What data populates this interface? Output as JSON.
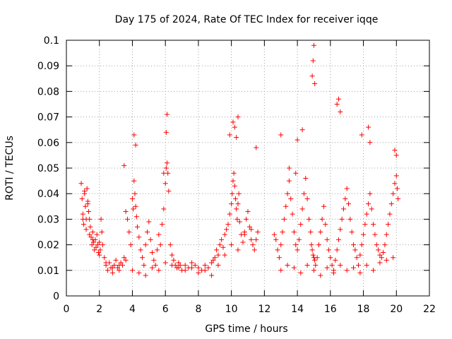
{
  "chart_data": {
    "type": "scatter",
    "title": "Day 175 of 2024, Rate Of TEC Index for receiver iqqe",
    "xlabel": "GPS time / hours",
    "ylabel": "ROTI / TECUs",
    "xlim": [
      0,
      22
    ],
    "ylim": [
      0,
      0.1
    ],
    "xticks": [
      0,
      2,
      4,
      6,
      8,
      10,
      12,
      14,
      16,
      18,
      20,
      22
    ],
    "yticks": [
      0,
      0.01,
      0.02,
      0.03,
      0.04,
      0.05,
      0.06,
      0.07,
      0.08,
      0.09,
      0.1
    ],
    "xtick_labels": [
      "0",
      "2",
      "4",
      "6",
      "8",
      "10",
      "12",
      "14",
      "16",
      "18",
      "20",
      "22"
    ],
    "ytick_labels": [
      "0",
      "0.01",
      "0.02",
      "0.03",
      "0.04",
      "0.05",
      "0.06",
      "0.07",
      "0.08",
      "0.09",
      "0.1"
    ],
    "grid": true,
    "marker": "+",
    "color": "#ff0000",
    "series": [
      {
        "name": "ROTI",
        "x": [
          0.9,
          0.95,
          1.0,
          1.05,
          1.1,
          1.15,
          1.2,
          1.25,
          1.3,
          1.35,
          1.4,
          1.45,
          1.5,
          1.55,
          1.6,
          1.65,
          1.7,
          1.75,
          1.8,
          1.85,
          1.9,
          1.95,
          2.0,
          2.05,
          2.1,
          2.15,
          2.2,
          2.3,
          2.4,
          2.5,
          2.6,
          2.7,
          2.8,
          2.9,
          3.0,
          3.1,
          3.2,
          3.3,
          3.4,
          3.5,
          3.6,
          3.7,
          3.8,
          3.9,
          4.0,
          4.05,
          4.1,
          4.15,
          4.2,
          4.25,
          4.3,
          4.4,
          4.5,
          4.6,
          4.7,
          4.8,
          4.9,
          5.0,
          5.1,
          5.2,
          5.3,
          5.4,
          5.5,
          5.6,
          5.7,
          5.8,
          5.9,
          6.0,
          6.05,
          6.1,
          6.15,
          6.2,
          6.3,
          6.4,
          6.5,
          6.6,
          6.7,
          6.8,
          6.9,
          7.0,
          7.2,
          7.4,
          7.6,
          7.8,
          8.0,
          8.2,
          8.4,
          8.6,
          8.8,
          8.9,
          9.0,
          9.1,
          9.2,
          9.3,
          9.4,
          9.5,
          9.6,
          9.7,
          9.8,
          9.9,
          10.0,
          10.05,
          10.1,
          10.15,
          10.2,
          10.25,
          10.3,
          10.35,
          10.4,
          10.45,
          10.5,
          10.6,
          10.7,
          10.8,
          10.9,
          11.0,
          11.1,
          11.2,
          11.3,
          11.4,
          11.5,
          11.6,
          12.6,
          12.7,
          12.8,
          12.9,
          13.0,
          13.1,
          13.2,
          13.3,
          13.4,
          13.5,
          13.6,
          13.7,
          13.8,
          13.9,
          14.0,
          14.1,
          14.2,
          14.3,
          14.4,
          14.5,
          14.6,
          14.7,
          14.8,
          14.85,
          14.9,
          14.95,
          15.0,
          15.05,
          15.1,
          15.2,
          15.3,
          15.4,
          15.5,
          15.6,
          15.7,
          15.8,
          15.9,
          16.0,
          16.1,
          16.2,
          16.3,
          16.4,
          16.5,
          16.6,
          16.7,
          16.8,
          16.9,
          17.0,
          17.1,
          17.2,
          17.3,
          17.4,
          17.5,
          17.6,
          17.7,
          17.8,
          17.9,
          18.0,
          18.1,
          18.2,
          18.3,
          18.4,
          18.5,
          18.6,
          18.7,
          18.8,
          18.9,
          19.0,
          19.1,
          19.2,
          19.3,
          19.4,
          19.5,
          19.6,
          19.7,
          19.8,
          19.9,
          20.0,
          20.05,
          20.1,
          1.0,
          1.2,
          1.4,
          1.6,
          2.0,
          2.4,
          2.8,
          3.2,
          3.6,
          4.0,
          4.4,
          4.8,
          5.2,
          5.6,
          6.0,
          6.4,
          6.8,
          7.2,
          7.6,
          8.0,
          8.4,
          8.8,
          9.2,
          9.6,
          10.0,
          10.4,
          10.8,
          11.2,
          13.0,
          13.4,
          13.8,
          14.2,
          14.6,
          15.0,
          15.4,
          15.8,
          16.2,
          16.6,
          17.0,
          17.4,
          17.8,
          18.2,
          18.6,
          19.0,
          19.4,
          19.8,
          1.1,
          1.3,
          3.5,
          4.1,
          4.2,
          5.9,
          6.05,
          6.1,
          9.9,
          10.1,
          10.2,
          10.3,
          10.4,
          11.5,
          13.0,
          13.5,
          13.9,
          14.0,
          14.3,
          14.9,
          14.95,
          15.0,
          15.05,
          16.4,
          16.5,
          16.6,
          17.9,
          18.3,
          18.4,
          19.9,
          20.0
        ],
        "y": [
          0.044,
          0.038,
          0.032,
          0.028,
          0.041,
          0.035,
          0.03,
          0.042,
          0.036,
          0.033,
          0.03,
          0.027,
          0.023,
          0.02,
          0.025,
          0.021,
          0.018,
          0.022,
          0.019,
          0.024,
          0.02,
          0.017,
          0.021,
          0.018,
          0.03,
          0.025,
          0.02,
          0.015,
          0.012,
          0.01,
          0.013,
          0.011,
          0.009,
          0.012,
          0.014,
          0.011,
          0.01,
          0.013,
          0.012,
          0.015,
          0.033,
          0.03,
          0.025,
          0.02,
          0.038,
          0.034,
          0.045,
          0.04,
          0.035,
          0.031,
          0.027,
          0.023,
          0.018,
          0.015,
          0.012,
          0.02,
          0.025,
          0.029,
          0.022,
          0.017,
          0.014,
          0.012,
          0.018,
          0.024,
          0.02,
          0.028,
          0.034,
          0.044,
          0.05,
          0.052,
          0.048,
          0.041,
          0.02,
          0.016,
          0.014,
          0.012,
          0.011,
          0.013,
          0.012,
          0.01,
          0.012,
          0.011,
          0.013,
          0.012,
          0.011,
          0.01,
          0.012,
          0.011,
          0.013,
          0.014,
          0.015,
          0.018,
          0.016,
          0.02,
          0.022,
          0.019,
          0.024,
          0.026,
          0.028,
          0.032,
          0.036,
          0.04,
          0.045,
          0.048,
          0.043,
          0.038,
          0.034,
          0.03,
          0.036,
          0.04,
          0.029,
          0.024,
          0.021,
          0.025,
          0.03,
          0.033,
          0.027,
          0.022,
          0.02,
          0.018,
          0.022,
          0.025,
          0.024,
          0.022,
          0.018,
          0.015,
          0.02,
          0.025,
          0.03,
          0.035,
          0.04,
          0.045,
          0.038,
          0.032,
          0.025,
          0.02,
          0.018,
          0.022,
          0.028,
          0.034,
          0.04,
          0.046,
          0.038,
          0.03,
          0.025,
          0.02,
          0.018,
          0.016,
          0.015,
          0.014,
          0.012,
          0.015,
          0.02,
          0.025,
          0.03,
          0.035,
          0.028,
          0.022,
          0.018,
          0.015,
          0.012,
          0.01,
          0.014,
          0.018,
          0.022,
          0.026,
          0.03,
          0.034,
          0.038,
          0.042,
          0.036,
          0.03,
          0.025,
          0.02,
          0.018,
          0.015,
          0.012,
          0.016,
          0.02,
          0.024,
          0.028,
          0.032,
          0.036,
          0.04,
          0.034,
          0.028,
          0.024,
          0.02,
          0.018,
          0.016,
          0.015,
          0.017,
          0.02,
          0.024,
          0.028,
          0.032,
          0.036,
          0.04,
          0.044,
          0.047,
          0.042,
          0.038,
          0.03,
          0.026,
          0.024,
          0.022,
          0.016,
          0.013,
          0.011,
          0.012,
          0.014,
          0.01,
          0.009,
          0.008,
          0.011,
          0.01,
          0.013,
          0.012,
          0.011,
          0.01,
          0.011,
          0.009,
          0.01,
          0.008,
          0.012,
          0.016,
          0.02,
          0.018,
          0.024,
          0.026,
          0.01,
          0.012,
          0.011,
          0.009,
          0.012,
          0.01,
          0.008,
          0.011,
          0.009,
          0.012,
          0.01,
          0.011,
          0.009,
          0.012,
          0.01,
          0.013,
          0.014,
          0.015,
          0.04,
          0.037,
          0.051,
          0.063,
          0.059,
          0.048,
          0.064,
          0.071,
          0.063,
          0.068,
          0.066,
          0.062,
          0.07,
          0.058,
          0.063,
          0.05,
          0.048,
          0.061,
          0.065,
          0.086,
          0.092,
          0.098,
          0.083,
          0.075,
          0.077,
          0.072,
          0.063,
          0.066,
          0.06,
          0.057,
          0.055
        ]
      }
    ]
  }
}
